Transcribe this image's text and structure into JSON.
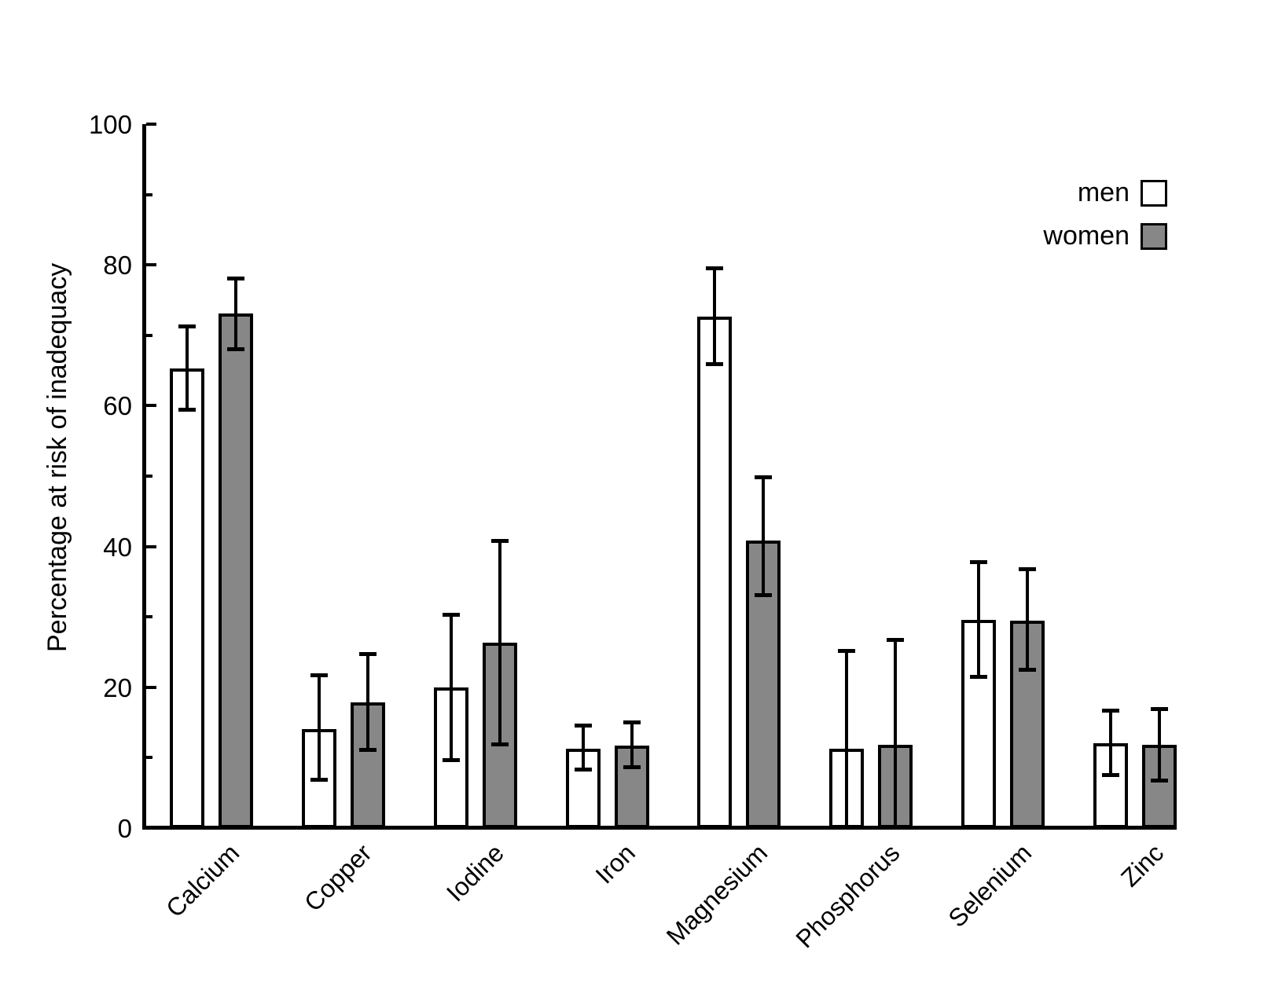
{
  "figure": {
    "title": "",
    "ylabel": "Percentage at risk of inadequacy",
    "background": "#ffffff",
    "line_color": "#000000",
    "legend": {
      "position": "top-right",
      "items": [
        {
          "label": "men",
          "fill": "#ffffff",
          "border": "#000000"
        },
        {
          "label": "women",
          "fill": "#878787",
          "border": "#000000"
        }
      ]
    }
  },
  "chart_data": {
    "type": "bar",
    "title": "",
    "xlabel": "",
    "ylabel": "Percentage at risk of inadequacy",
    "ylim": [
      0,
      100
    ],
    "yticks_major": [
      0,
      20,
      40,
      60,
      80,
      100
    ],
    "yticks_minor": [
      10,
      30,
      50,
      70,
      90
    ],
    "grid": false,
    "error_bars": true,
    "legend_position": "top-right",
    "categories": [
      "Calcium",
      "Copper",
      "Iodine",
      "Iron",
      "Magnesium",
      "Phosphorus",
      "Selenium",
      "Zinc"
    ],
    "series": [
      {
        "name": "men",
        "fill": "#ffffff",
        "values": [
          65.3,
          14.1,
          20.0,
          11.3,
          72.7,
          11.3,
          29.6,
          12.1
        ],
        "err_low": [
          59.4,
          6.8,
          9.6,
          8.3,
          65.8,
          0.0,
          21.4,
          7.5
        ],
        "err_high": [
          71.3,
          21.8,
          30.4,
          14.6,
          79.6,
          25.2,
          37.8,
          16.7
        ]
      },
      {
        "name": "women",
        "fill": "#878787",
        "values": [
          73.1,
          17.9,
          26.3,
          11.7,
          40.8,
          11.8,
          29.5,
          11.8
        ],
        "err_low": [
          68.0,
          11.0,
          11.8,
          8.6,
          33.0,
          0.0,
          22.4,
          6.7
        ],
        "err_high": [
          78.1,
          24.8,
          40.8,
          15.1,
          49.9,
          26.8,
          36.8,
          17.0
        ]
      }
    ]
  }
}
